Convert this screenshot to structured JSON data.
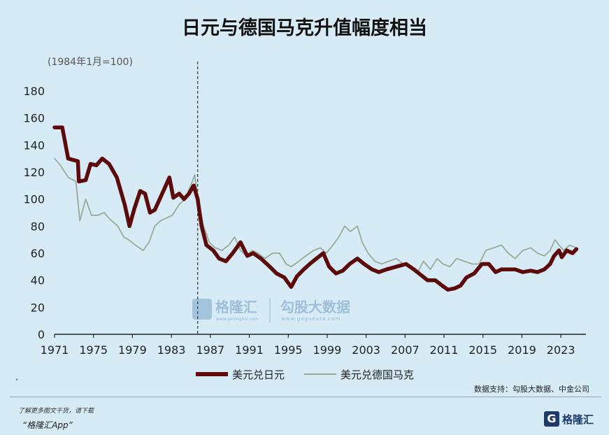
{
  "title": "日元与德国马克升值幅度相当",
  "unit_note": "(1984年1月=100)",
  "source": "数据支持：勾股大数据、中金公司",
  "footer": {
    "line1": "了解更多图文干货，请下载",
    "line2": "“格隆汇App”",
    "logo_text": "格隆汇",
    "logo_letter": "G"
  },
  "watermark": {
    "left_name": "格隆汇",
    "left_url": "www.gelonghui.com",
    "right_name": "勾股大数据",
    "right_url": "www.gogudata.com"
  },
  "colors": {
    "jpy": "#5c0a0a",
    "dem": "#9aaa98",
    "background": "#d6ebf5"
  },
  "chart_data": {
    "type": "line",
    "title": "日元与德国马克升值幅度相当",
    "xlabel": "",
    "ylabel": "(1984年1月=100)",
    "xlim": [
      1971,
      2025
    ],
    "ylim": [
      0,
      180
    ],
    "yticks": [
      0,
      20,
      40,
      60,
      80,
      100,
      120,
      140,
      160,
      180
    ],
    "xticks": [
      1971,
      1975,
      1979,
      1983,
      1987,
      1991,
      1995,
      1999,
      2003,
      2007,
      2011,
      2015,
      2019,
      2023
    ],
    "reference_line_x": 1985.7,
    "grid": false,
    "legend": "bottom",
    "series": [
      {
        "name": "美元兑日元",
        "color": "#5c0a0a",
        "points": [
          [
            1971,
            153
          ],
          [
            1971.8,
            153
          ],
          [
            1972.4,
            130
          ],
          [
            1973.4,
            128
          ],
          [
            1973.5,
            113
          ],
          [
            1974.2,
            114
          ],
          [
            1974.7,
            126
          ],
          [
            1975.3,
            125
          ],
          [
            1975.9,
            130
          ],
          [
            1976.6,
            126
          ],
          [
            1977.4,
            116
          ],
          [
            1978.2,
            96
          ],
          [
            1978.7,
            80
          ],
          [
            1979.2,
            93
          ],
          [
            1979.8,
            106
          ],
          [
            1980.3,
            104
          ],
          [
            1980.8,
            90
          ],
          [
            1981.3,
            92
          ],
          [
            1981.8,
            100
          ],
          [
            1982.3,
            108
          ],
          [
            1982.8,
            116
          ],
          [
            1983.2,
            101
          ],
          [
            1983.8,
            104
          ],
          [
            1984.3,
            100
          ],
          [
            1984.8,
            104
          ],
          [
            1985.3,
            110
          ],
          [
            1985.7,
            100
          ],
          [
            1986.1,
            80
          ],
          [
            1986.6,
            66
          ],
          [
            1987.3,
            62
          ],
          [
            1987.9,
            56
          ],
          [
            1988.6,
            54
          ],
          [
            1989.3,
            60
          ],
          [
            1990.1,
            68
          ],
          [
            1990.8,
            58
          ],
          [
            1991.4,
            60
          ],
          [
            1992.2,
            56
          ],
          [
            1993.1,
            50
          ],
          [
            1993.8,
            45
          ],
          [
            1994.6,
            42
          ],
          [
            1995.3,
            35
          ],
          [
            1995.9,
            43
          ],
          [
            1996.6,
            48
          ],
          [
            1997.2,
            52
          ],
          [
            1997.9,
            56
          ],
          [
            1998.6,
            60
          ],
          [
            1999.2,
            50
          ],
          [
            1999.9,
            45
          ],
          [
            2000.6,
            47
          ],
          [
            2001.3,
            52
          ],
          [
            2002.1,
            56
          ],
          [
            2002.8,
            52
          ],
          [
            2003.6,
            48
          ],
          [
            2004.3,
            46
          ],
          [
            2005.1,
            48
          ],
          [
            2006.1,
            50
          ],
          [
            2007.1,
            52
          ],
          [
            2007.9,
            48
          ],
          [
            2008.6,
            44
          ],
          [
            2009.3,
            40
          ],
          [
            2010.1,
            40
          ],
          [
            2010.8,
            36
          ],
          [
            2011.4,
            33
          ],
          [
            2012.1,
            34
          ],
          [
            2012.7,
            36
          ],
          [
            2013.3,
            42
          ],
          [
            2014.1,
            45
          ],
          [
            2014.9,
            52
          ],
          [
            2015.6,
            52
          ],
          [
            2016.3,
            46
          ],
          [
            2016.9,
            48
          ],
          [
            2017.6,
            48
          ],
          [
            2018.3,
            48
          ],
          [
            2019.1,
            46
          ],
          [
            2019.9,
            47
          ],
          [
            2020.6,
            46
          ],
          [
            2021.3,
            48
          ],
          [
            2021.9,
            52
          ],
          [
            2022.3,
            58
          ],
          [
            2022.8,
            62
          ],
          [
            2023.1,
            57
          ],
          [
            2023.6,
            62
          ],
          [
            2024.2,
            60
          ],
          [
            2024.6,
            63
          ]
        ]
      },
      {
        "name": "美元兑德国马克",
        "color": "#9aaa98",
        "points": [
          [
            1971,
            130
          ],
          [
            1971.6,
            125
          ],
          [
            1972.4,
            116
          ],
          [
            1973.2,
            113
          ],
          [
            1973.6,
            84
          ],
          [
            1974.2,
            100
          ],
          [
            1974.8,
            88
          ],
          [
            1975.4,
            88
          ],
          [
            1976.1,
            90
          ],
          [
            1976.7,
            85
          ],
          [
            1977.5,
            80
          ],
          [
            1978.1,
            72
          ],
          [
            1978.6,
            70
          ],
          [
            1979.3,
            66
          ],
          [
            1980.1,
            62
          ],
          [
            1980.7,
            68
          ],
          [
            1981.3,
            80
          ],
          [
            1981.9,
            84
          ],
          [
            1982.5,
            86
          ],
          [
            1983.1,
            88
          ],
          [
            1983.8,
            96
          ],
          [
            1984.4,
            100
          ],
          [
            1985.1,
            112
          ],
          [
            1985.4,
            118
          ],
          [
            1985.8,
            96
          ],
          [
            1986.3,
            80
          ],
          [
            1986.9,
            68
          ],
          [
            1987.5,
            64
          ],
          [
            1988.2,
            62
          ],
          [
            1988.9,
            66
          ],
          [
            1989.5,
            72
          ],
          [
            1990.1,
            62
          ],
          [
            1990.7,
            58
          ],
          [
            1991.3,
            62
          ],
          [
            1991.9,
            60
          ],
          [
            1992.6,
            56
          ],
          [
            1993.4,
            60
          ],
          [
            1994.1,
            60
          ],
          [
            1994.8,
            52
          ],
          [
            1995.3,
            50
          ],
          [
            1996.1,
            54
          ],
          [
            1996.8,
            58
          ],
          [
            1997.6,
            62
          ],
          [
            1998.3,
            64
          ],
          [
            1998.9,
            60
          ],
          [
            1999.6,
            66
          ],
          [
            2000.2,
            72
          ],
          [
            2000.8,
            80
          ],
          [
            2001.4,
            76
          ],
          [
            2002.1,
            80
          ],
          [
            2002.6,
            68
          ],
          [
            2003.2,
            60
          ],
          [
            2003.9,
            54
          ],
          [
            2004.6,
            52
          ],
          [
            2005.3,
            54
          ],
          [
            2006.1,
            56
          ],
          [
            2006.8,
            52
          ],
          [
            2007.6,
            50
          ],
          [
            2008.3,
            46
          ],
          [
            2008.9,
            54
          ],
          [
            2009.6,
            48
          ],
          [
            2010.3,
            56
          ],
          [
            2010.9,
            52
          ],
          [
            2011.6,
            50
          ],
          [
            2012.3,
            56
          ],
          [
            2013.1,
            54
          ],
          [
            2013.9,
            52
          ],
          [
            2014.6,
            52
          ],
          [
            2015.3,
            62
          ],
          [
            2016.1,
            64
          ],
          [
            2016.9,
            66
          ],
          [
            2017.6,
            60
          ],
          [
            2018.3,
            56
          ],
          [
            2019.1,
            62
          ],
          [
            2019.9,
            64
          ],
          [
            2020.6,
            60
          ],
          [
            2021.3,
            58
          ],
          [
            2021.9,
            62
          ],
          [
            2022.4,
            70
          ],
          [
            2022.8,
            66
          ],
          [
            2023.3,
            62
          ],
          [
            2023.9,
            66
          ],
          [
            2024.6,
            64
          ]
        ]
      }
    ]
  }
}
